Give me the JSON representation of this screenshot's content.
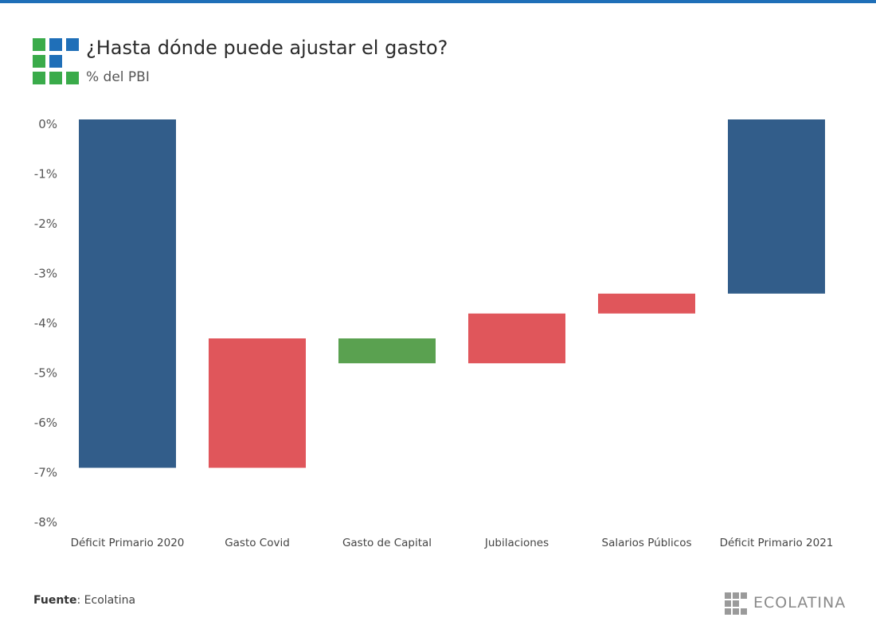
{
  "header": {
    "title": "¿Hasta dónde puede ajustar el gasto?",
    "subtitle": "% del PBI"
  },
  "footer": {
    "source_label": "Fuente",
    "source_value": ": Ecolatina",
    "brand": "ECOLATINA"
  },
  "colors": {
    "accent_bar": "#1f6fb8",
    "total": "#325d8a",
    "increase_deficit": "#e0565b",
    "decrease_deficit": "#5aa150",
    "logo_green": "#3aab4a",
    "logo_blue": "#1f6fb8"
  },
  "chart_data": {
    "type": "bar",
    "subtype": "waterfall",
    "title": "¿Hasta dónde puede ajustar el gasto?",
    "ylabel": "% del PBI",
    "ylim": [
      -8,
      0
    ],
    "yticks": [
      {
        "value": 0,
        "label": "0%"
      },
      {
        "value": -1,
        "label": "-1%"
      },
      {
        "value": -2,
        "label": "-2%"
      },
      {
        "value": -3,
        "label": "-3%"
      },
      {
        "value": -4,
        "label": "-4%"
      },
      {
        "value": -5,
        "label": "-5%"
      },
      {
        "value": -6,
        "label": "-6%"
      },
      {
        "value": -7,
        "label": "-7%"
      },
      {
        "value": -8,
        "label": "-8%"
      }
    ],
    "categories": [
      "Déficit Primario 2020",
      "Gasto Covid",
      "Gasto de Capital",
      "Jubilaciones",
      "Salarios Públicos",
      "Déficit Primario 2021"
    ],
    "bars": [
      {
        "category": "Déficit Primario 2020",
        "from": 0,
        "to": -7.0,
        "kind": "total"
      },
      {
        "category": "Gasto Covid",
        "from": -7.0,
        "to": -4.4,
        "kind": "increase_deficit"
      },
      {
        "category": "Gasto de Capital",
        "from": -4.4,
        "to": -4.9,
        "kind": "decrease_deficit"
      },
      {
        "category": "Jubilaciones",
        "from": -4.9,
        "to": -3.9,
        "kind": "increase_deficit"
      },
      {
        "category": "Salarios Públicos",
        "from": -3.9,
        "to": -3.5,
        "kind": "increase_deficit"
      },
      {
        "category": "Déficit Primario 2021",
        "from": 0,
        "to": -3.5,
        "kind": "total"
      }
    ],
    "grid": false,
    "legend": "none"
  }
}
